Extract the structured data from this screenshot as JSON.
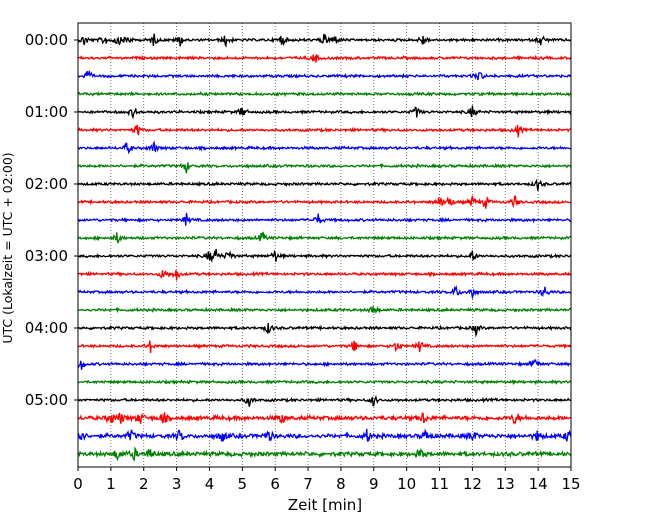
{
  "chart_data": {
    "type": "line",
    "title": "",
    "xlabel": "Zeit  [min]",
    "ylabel": "UTC (Lokalzeit = UTC + 02:00)",
    "xlim": [
      0,
      15
    ],
    "x_ticks": [
      "0",
      "1",
      "2",
      "3",
      "4",
      "5",
      "6",
      "7",
      "8",
      "9",
      "10",
      "11",
      "12",
      "13",
      "14",
      "15"
    ],
    "y_tick_labels": [
      "00:00",
      "01:00",
      "02:00",
      "03:00",
      "04:00",
      "05:00"
    ],
    "grid": "vertical dotted lines at each minute",
    "color_cycle": [
      "#000000",
      "#ff0000",
      "#0000ff",
      "#008000"
    ],
    "trace_count": 24,
    "trace_interval_minutes": 15,
    "bursts": [
      {
        "trace": 0,
        "at": [
          0.2,
          0.8,
          1.2,
          1.5,
          2.3,
          3.1,
          4.5,
          6.2,
          7.5,
          7.8,
          10.5,
          14.1
        ]
      },
      {
        "trace": 1,
        "at": [
          7.2
        ]
      },
      {
        "trace": 2,
        "at": [
          0.3,
          12.2
        ]
      },
      {
        "trace": 4,
        "at": [
          1.7,
          5.0,
          10.3,
          12.0
        ]
      },
      {
        "trace": 5,
        "at": [
          1.8,
          13.4
        ]
      },
      {
        "trace": 6,
        "at": [
          1.5,
          2.3
        ]
      },
      {
        "trace": 7,
        "at": [
          3.3
        ]
      },
      {
        "trace": 8,
        "at": [
          14.0
        ]
      },
      {
        "trace": 9,
        "at": [
          11.0,
          11.3,
          12.0,
          12.4,
          13.3
        ]
      },
      {
        "trace": 10,
        "at": [
          3.3,
          7.3
        ]
      },
      {
        "trace": 11,
        "at": [
          1.2,
          5.6
        ]
      },
      {
        "trace": 12,
        "at": [
          4.0,
          4.2,
          4.6,
          6.0,
          12.0
        ]
      },
      {
        "trace": 13,
        "at": [
          2.6,
          3.0
        ]
      },
      {
        "trace": 14,
        "at": [
          11.5,
          12.0,
          14.2
        ]
      },
      {
        "trace": 15,
        "at": [
          9.0
        ]
      },
      {
        "trace": 16,
        "at": [
          5.8,
          12.1
        ]
      },
      {
        "trace": 17,
        "at": [
          2.2,
          8.4,
          9.7,
          10.4
        ]
      },
      {
        "trace": 18,
        "at": [
          0.1,
          13.9
        ]
      },
      {
        "trace": 20,
        "at": [
          5.2,
          9.0
        ]
      },
      {
        "trace": 21,
        "at": [
          1.0,
          1.3,
          1.9,
          2.6,
          6.2,
          10.5,
          13.3
        ]
      },
      {
        "trace": 22,
        "at": [
          0.1,
          1.6,
          3.1,
          4.4,
          5.8,
          8.8,
          10.6,
          12.0,
          14.0,
          14.9
        ]
      },
      {
        "trace": 23,
        "at": [
          1.2,
          1.7,
          2.2,
          10.4
        ]
      }
    ]
  }
}
